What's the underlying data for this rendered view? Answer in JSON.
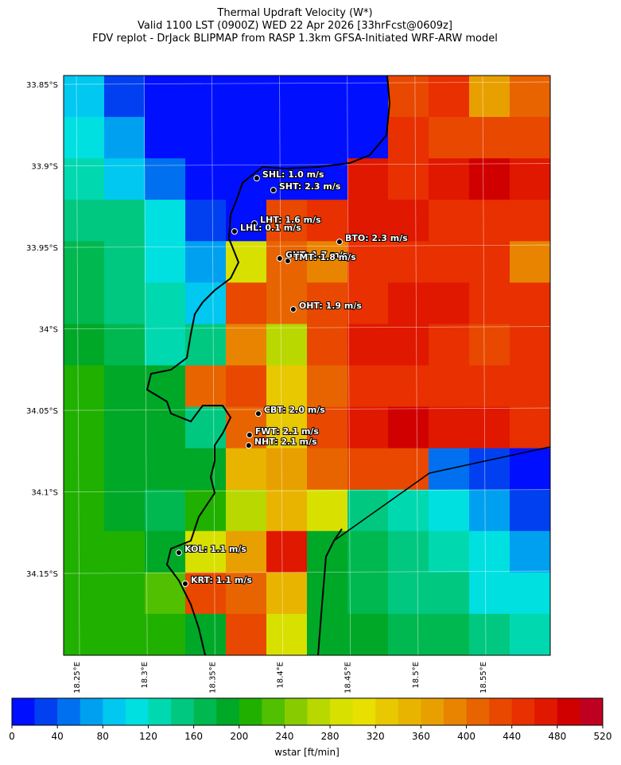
{
  "chart_data": {
    "type": "heatmap",
    "title": [
      "Thermal Updraft Velocity (W*)",
      "Valid 1100 LST (0900Z) WED 22 Apr 2026 [33hrFcst@0609z]",
      "FDV replot - DrJack BLIPMAP from RASP 1.3km GFSA-Initiated WRF-ARW model"
    ],
    "xlim": [
      18.2406,
      18.5999
    ],
    "ylim": [
      -34.2002,
      -33.8446
    ],
    "xticks": [
      {
        "value": 18.25,
        "label": "18.25°E"
      },
      {
        "value": 18.3,
        "label": "18.3°E"
      },
      {
        "value": 18.35,
        "label": "18.35°E"
      },
      {
        "value": 18.4,
        "label": "18.4°E"
      },
      {
        "value": 18.45,
        "label": "18.45°E"
      },
      {
        "value": 18.5,
        "label": "18.5°E"
      },
      {
        "value": 18.55,
        "label": "18.55°E"
      }
    ],
    "yticks": [
      {
        "value": -33.85,
        "label": "33.85°S"
      },
      {
        "value": -33.9,
        "label": "33.9°S"
      },
      {
        "value": -33.95,
        "label": "33.95°S"
      },
      {
        "value": -34.0,
        "label": "34°S"
      },
      {
        "value": -34.05,
        "label": "34.05°S"
      },
      {
        "value": -34.1,
        "label": "34.1°S"
      },
      {
        "value": -34.15,
        "label": "34.15°S"
      }
    ],
    "grid": true,
    "values": [
      [
        80,
        20,
        10,
        10,
        10,
        10,
        10,
        10,
        430,
        440,
        360,
        400
      ],
      [
        110,
        60,
        10,
        10,
        10,
        10,
        10,
        10,
        440,
        420,
        420,
        420
      ],
      [
        130,
        90,
        40,
        10,
        10,
        10,
        10,
        470,
        450,
        460,
        480,
        460
      ],
      [
        150,
        140,
        100,
        20,
        10,
        430,
        440,
        460,
        460,
        440,
        450,
        440
      ],
      [
        160,
        140,
        110,
        60,
        300,
        400,
        380,
        440,
        450,
        440,
        440,
        380
      ],
      [
        170,
        150,
        130,
        90,
        420,
        400,
        420,
        450,
        470,
        460,
        450,
        440
      ],
      [
        180,
        170,
        130,
        150,
        380,
        260,
        420,
        460,
        470,
        440,
        430,
        450
      ],
      [
        200,
        190,
        180,
        400,
        420,
        330,
        410,
        440,
        450,
        450,
        450,
        450
      ],
      [
        200,
        190,
        180,
        150,
        410,
        330,
        420,
        470,
        480,
        470,
        460,
        450
      ],
      [
        200,
        190,
        180,
        190,
        340,
        370,
        400,
        420,
        430,
        40,
        20,
        10
      ],
      [
        200,
        180,
        170,
        200,
        260,
        340,
        300,
        150,
        130,
        100,
        60,
        20
      ],
      [
        200,
        200,
        190,
        280,
        360,
        460,
        180,
        160,
        150,
        130,
        100,
        60
      ],
      [
        210,
        210,
        220,
        420,
        400,
        340,
        180,
        160,
        150,
        140,
        110,
        100
      ],
      [
        210,
        200,
        200,
        180,
        420,
        300,
        190,
        180,
        170,
        160,
        140,
        130
      ]
    ],
    "stations": [
      {
        "label": "SHL: 1.0 m/s",
        "lon": 18.3832,
        "lat": -33.9076
      },
      {
        "label": "SHT: 2.3 m/s",
        "lon": 18.3955,
        "lat": -33.9149
      },
      {
        "label": "LHT: 1.6 m/s",
        "lon": 18.3815,
        "lat": -33.9354
      },
      {
        "label": "LHL: 0.1 m/s",
        "lon": 18.3668,
        "lat": -33.9402
      },
      {
        "label": "BTO: 2.3 m/s",
        "lon": 18.4443,
        "lat": -33.9466
      },
      {
        "label": "GUT: 1.7 m/s",
        "lon": 18.4002,
        "lat": -33.9568
      },
      {
        "label": "TMT: 1.8 m/s",
        "lon": 18.4061,
        "lat": -33.9583
      },
      {
        "label": "OHT: 1.9 m/s",
        "lon": 18.4102,
        "lat": -33.988
      },
      {
        "label": "CBT: 2.0 m/s",
        "lon": 18.3844,
        "lat": -34.052
      },
      {
        "label": "FWT: 2.1 m/s",
        "lon": 18.3779,
        "lat": -34.0651
      },
      {
        "label": "NHT: 2.1 m/s",
        "lon": 18.3773,
        "lat": -34.0715
      },
      {
        "label": "KOL: 1.1 m/s",
        "lon": 18.3257,
        "lat": -34.1373
      },
      {
        "label": "KRT: 1.1 m/s",
        "lon": 18.3304,
        "lat": -34.1563
      }
    ],
    "colorbar": {
      "label": "wstar [ft/min]",
      "lim": [
        0,
        520
      ],
      "ticks": [
        0,
        40,
        80,
        120,
        160,
        200,
        240,
        280,
        320,
        360,
        400,
        440,
        480,
        520
      ],
      "colors": [
        "#0010ff",
        "#0040f0",
        "#0070f0",
        "#00a0f0",
        "#00c8f0",
        "#00e0e0",
        "#00d8b0",
        "#00c880",
        "#00b850",
        "#00a828",
        "#20b000",
        "#50c000",
        "#88cc00",
        "#b8d800",
        "#d8e000",
        "#e8e000",
        "#e8c800",
        "#e8b400",
        "#e8a000",
        "#e88400",
        "#e86400",
        "#e84800",
        "#e83000",
        "#e01800",
        "#d00000",
        "#c00020"
      ]
    }
  }
}
